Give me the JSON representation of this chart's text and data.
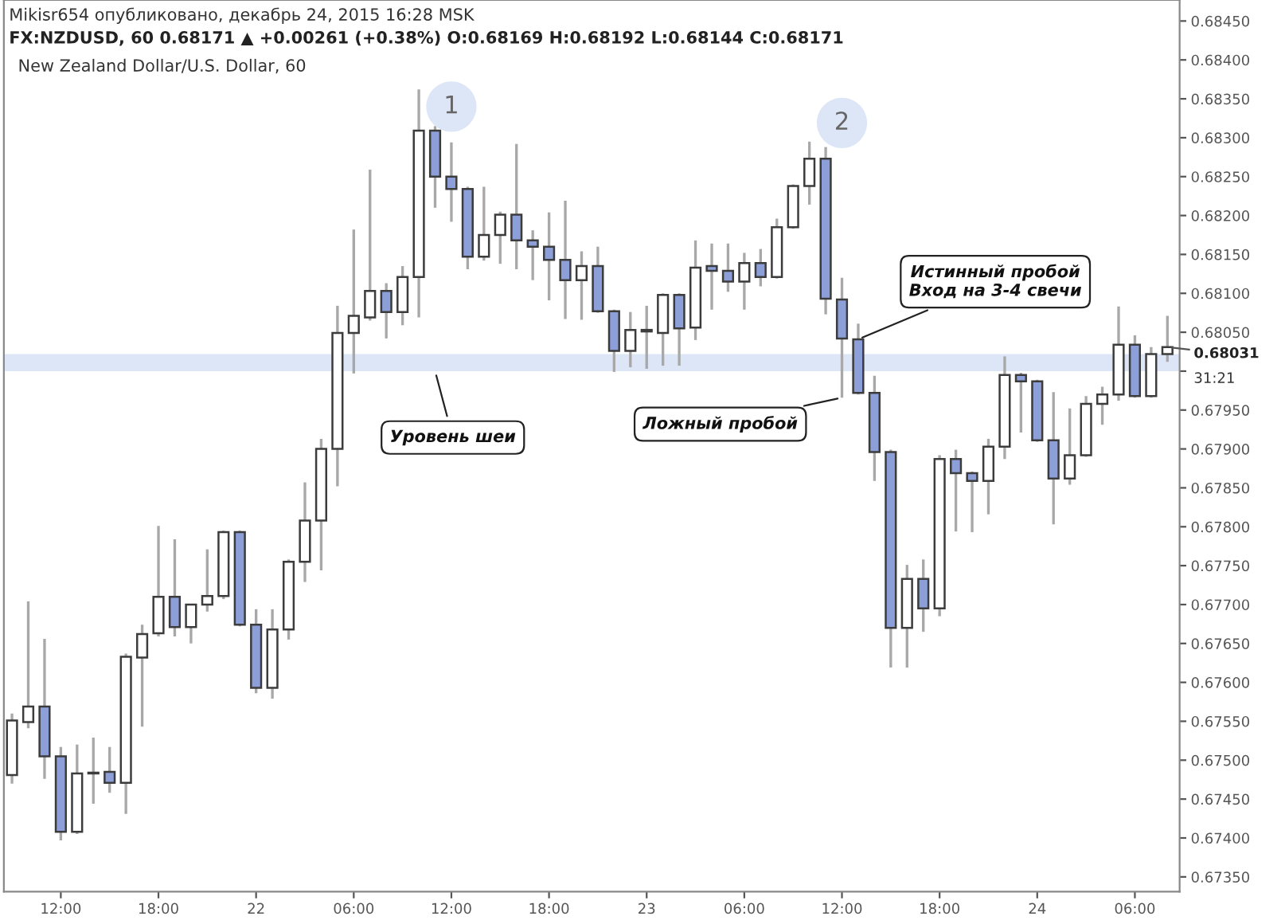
{
  "chart_data": {
    "type": "candlestick",
    "title": "New Zealand Dollar/U.S. Dollar, 60",
    "subtitle": "FX:NZDUSD, 60 0.68171 ▲ +0.00261 (+0.38%) O:0.68169 H:0.68192 L:0.68144 C:0.68171",
    "x": [
      "2015-12-21T09:00",
      "2015-12-21T10:00",
      "2015-12-21T11:00",
      "2015-12-21T12:00",
      "2015-12-21T13:00",
      "2015-12-21T14:00",
      "2015-12-21T15:00",
      "2015-12-21T16:00",
      "2015-12-21T17:00",
      "2015-12-21T18:00",
      "2015-12-21T19:00",
      "2015-12-21T20:00",
      "2015-12-21T21:00",
      "2015-12-21T22:00",
      "2015-12-21T23:00",
      "2015-12-22T00:00",
      "2015-12-22T01:00",
      "2015-12-22T02:00",
      "2015-12-22T03:00",
      "2015-12-22T04:00",
      "2015-12-22T05:00",
      "2015-12-22T06:00",
      "2015-12-22T07:00",
      "2015-12-22T08:00",
      "2015-12-22T09:00",
      "2015-12-22T10:00",
      "2015-12-22T11:00",
      "2015-12-22T12:00",
      "2015-12-22T13:00",
      "2015-12-22T14:00",
      "2015-12-22T15:00",
      "2015-12-22T16:00",
      "2015-12-22T17:00",
      "2015-12-22T18:00",
      "2015-12-22T19:00",
      "2015-12-22T20:00",
      "2015-12-22T21:00",
      "2015-12-22T22:00",
      "2015-12-22T23:00",
      "2015-12-23T00:00",
      "2015-12-23T01:00",
      "2015-12-23T02:00",
      "2015-12-23T03:00",
      "2015-12-23T04:00",
      "2015-12-23T05:00",
      "2015-12-23T06:00",
      "2015-12-23T07:00",
      "2015-12-23T08:00",
      "2015-12-23T09:00",
      "2015-12-23T10:00",
      "2015-12-23T11:00",
      "2015-12-23T12:00",
      "2015-12-23T13:00",
      "2015-12-23T14:00",
      "2015-12-23T15:00",
      "2015-12-23T16:00",
      "2015-12-23T17:00",
      "2015-12-23T18:00",
      "2015-12-23T19:00",
      "2015-12-23T20:00",
      "2015-12-23T21:00",
      "2015-12-23T22:00",
      "2015-12-23T23:00",
      "2015-12-24T00:00",
      "2015-12-24T01:00",
      "2015-12-24T02:00",
      "2015-12-24T03:00",
      "2015-12-24T04:00",
      "2015-12-24T05:00",
      "2015-12-24T06:00",
      "2015-12-24T07:00",
      "2015-12-24T08:00"
    ],
    "ohlc": [
      [
        0.67481,
        0.6756,
        0.6747,
        0.67551
      ],
      [
        0.67549,
        0.67704,
        0.67541,
        0.67569
      ],
      [
        0.67569,
        0.67656,
        0.67476,
        0.67505
      ],
      [
        0.67505,
        0.67517,
        0.67397,
        0.67408
      ],
      [
        0.67408,
        0.6752,
        0.67405,
        0.67483
      ],
      [
        0.67484,
        0.67529,
        0.67444,
        0.67483
      ],
      [
        0.67485,
        0.67517,
        0.67458,
        0.67471
      ],
      [
        0.67471,
        0.67637,
        0.67431,
        0.67633
      ],
      [
        0.67632,
        0.67674,
        0.67543,
        0.67662
      ],
      [
        0.67663,
        0.67801,
        0.67659,
        0.6771
      ],
      [
        0.6771,
        0.67784,
        0.67659,
        0.67671
      ],
      [
        0.67671,
        0.677,
        0.6765,
        0.677
      ],
      [
        0.677,
        0.67771,
        0.67691,
        0.67711
      ],
      [
        0.67711,
        0.67795,
        0.67707,
        0.67793
      ],
      [
        0.67793,
        0.67795,
        0.67672,
        0.67674
      ],
      [
        0.67674,
        0.67694,
        0.67586,
        0.67593
      ],
      [
        0.67593,
        0.67694,
        0.67579,
        0.67668
      ],
      [
        0.67668,
        0.67758,
        0.67655,
        0.67755
      ],
      [
        0.67755,
        0.67857,
        0.67729,
        0.67808
      ],
      [
        0.67808,
        0.67913,
        0.67744,
        0.679
      ],
      [
        0.679,
        0.68084,
        0.67852,
        0.68049
      ],
      [
        0.68049,
        0.68182,
        0.67997,
        0.68071
      ],
      [
        0.68069,
        0.68259,
        0.68065,
        0.68103
      ],
      [
        0.68103,
        0.68113,
        0.68042,
        0.68076
      ],
      [
        0.68076,
        0.68135,
        0.68059,
        0.68121
      ],
      [
        0.68121,
        0.68362,
        0.68069,
        0.68309
      ],
      [
        0.68309,
        0.68315,
        0.6821,
        0.6825
      ],
      [
        0.6825,
        0.68294,
        0.68192,
        0.68234
      ],
      [
        0.68234,
        0.68237,
        0.68131,
        0.68147
      ],
      [
        0.68147,
        0.68237,
        0.68142,
        0.68175
      ],
      [
        0.68175,
        0.68205,
        0.68138,
        0.68201
      ],
      [
        0.68201,
        0.68292,
        0.68131,
        0.68168
      ],
      [
        0.68168,
        0.68181,
        0.68117,
        0.6816
      ],
      [
        0.6816,
        0.68204,
        0.68091,
        0.68143
      ],
      [
        0.68143,
        0.68219,
        0.68067,
        0.68117
      ],
      [
        0.68117,
        0.68154,
        0.68066,
        0.68135
      ],
      [
        0.68135,
        0.6816,
        0.68075,
        0.68077
      ],
      [
        0.68077,
        0.68079,
        0.67999,
        0.68026
      ],
      [
        0.68026,
        0.68076,
        0.68005,
        0.68053
      ],
      [
        0.68053,
        0.68084,
        0.68003,
        0.68051
      ],
      [
        0.68049,
        0.681,
        0.68007,
        0.68098
      ],
      [
        0.68098,
        0.681,
        0.68007,
        0.68055
      ],
      [
        0.68056,
        0.68168,
        0.6804,
        0.68133
      ],
      [
        0.68135,
        0.68164,
        0.68079,
        0.68129
      ],
      [
        0.68129,
        0.68164,
        0.68102,
        0.68115
      ],
      [
        0.68115,
        0.68152,
        0.68079,
        0.68139
      ],
      [
        0.68139,
        0.68157,
        0.68109,
        0.68121
      ],
      [
        0.68121,
        0.68196,
        0.68119,
        0.68185
      ],
      [
        0.68185,
        0.6824,
        0.68183,
        0.68238
      ],
      [
        0.68238,
        0.68295,
        0.68214,
        0.68273
      ],
      [
        0.68273,
        0.68288,
        0.68073,
        0.68093
      ],
      [
        0.68092,
        0.6812,
        0.67966,
        0.68042
      ],
      [
        0.68041,
        0.68061,
        0.6797,
        0.67972
      ],
      [
        0.67972,
        0.67994,
        0.67859,
        0.67896
      ],
      [
        0.67896,
        0.67899,
        0.67619,
        0.6767
      ],
      [
        0.6767,
        0.67751,
        0.67619,
        0.67733
      ],
      [
        0.67733,
        0.67758,
        0.67665,
        0.67695
      ],
      [
        0.67695,
        0.67892,
        0.67685,
        0.67887
      ],
      [
        0.67887,
        0.67899,
        0.67794,
        0.67869
      ],
      [
        0.67869,
        0.67871,
        0.67793,
        0.67859
      ],
      [
        0.67859,
        0.67913,
        0.67816,
        0.67903
      ],
      [
        0.67903,
        0.68019,
        0.67887,
        0.67995
      ],
      [
        0.67995,
        0.67998,
        0.67921,
        0.67987
      ],
      [
        0.67987,
        0.67989,
        0.67909,
        0.67911
      ],
      [
        0.67911,
        0.67973,
        0.67803,
        0.67862
      ],
      [
        0.67862,
        0.67952,
        0.67854,
        0.67892
      ],
      [
        0.67892,
        0.67968,
        0.6789,
        0.67958
      ],
      [
        0.67958,
        0.6798,
        0.67931,
        0.6797
      ],
      [
        0.6797,
        0.68083,
        0.67962,
        0.68034
      ],
      [
        0.68034,
        0.68046,
        0.67966,
        0.67968
      ],
      [
        0.67968,
        0.68031,
        0.67966,
        0.68022
      ],
      [
        0.68022,
        0.68071,
        0.68012,
        0.68031
      ]
    ],
    "colors": [
      "#ffffff",
      "#ffffff",
      "#8c9fd9",
      "#8c9fd9",
      "#ffffff",
      "#8c9fd9",
      "#8c9fd9",
      "#ffffff",
      "#ffffff",
      "#ffffff",
      "#8c9fd9",
      "#ffffff",
      "#ffffff",
      "#ffffff",
      "#8c9fd9",
      "#8c9fd9",
      "#ffffff",
      "#ffffff",
      "#ffffff",
      "#ffffff",
      "#ffffff",
      "#ffffff",
      "#ffffff",
      "#8c9fd9",
      "#ffffff",
      "#ffffff",
      "#8c9fd9",
      "#8c9fd9",
      "#8c9fd9",
      "#ffffff",
      "#ffffff",
      "#8c9fd9",
      "#8c9fd9",
      "#8c9fd9",
      "#8c9fd9",
      "#ffffff",
      "#8c9fd9",
      "#8c9fd9",
      "#ffffff",
      "#8c9fd9",
      "#ffffff",
      "#8c9fd9",
      "#ffffff",
      "#8c9fd9",
      "#8c9fd9",
      "#ffffff",
      "#8c9fd9",
      "#ffffff",
      "#ffffff",
      "#ffffff",
      "#8c9fd9",
      "#8c9fd9",
      "#8c9fd9",
      "#8c9fd9",
      "#8c9fd9",
      "#ffffff",
      "#8c9fd9",
      "#ffffff",
      "#8c9fd9",
      "#8c9fd9",
      "#ffffff",
      "#ffffff",
      "#8c9fd9",
      "#8c9fd9",
      "#8c9fd9",
      "#ffffff",
      "#ffffff",
      "#ffffff",
      "#ffffff",
      "#8c9fd9",
      "#ffffff",
      "#ffffff"
    ],
    "xlim": [
      "2015-12-21T08:30",
      "2015-12-24T08:45"
    ],
    "xticks": [
      {
        "value": "2015-12-21T12:00",
        "label": "12:00"
      },
      {
        "value": "2015-12-21T18:00",
        "label": "18:00"
      },
      {
        "value": "2015-12-22T00:00",
        "label": "22"
      },
      {
        "value": "2015-12-22T06:00",
        "label": "06:00"
      },
      {
        "value": "2015-12-22T12:00",
        "label": "12:00"
      },
      {
        "value": "2015-12-22T18:00",
        "label": "18:00"
      },
      {
        "value": "2015-12-23T00:00",
        "label": "23"
      },
      {
        "value": "2015-12-23T06:00",
        "label": "06:00"
      },
      {
        "value": "2015-12-23T12:00",
        "label": "12:00"
      },
      {
        "value": "2015-12-23T18:00",
        "label": "18:00"
      },
      {
        "value": "2015-12-24T00:00",
        "label": "24"
      },
      {
        "value": "2015-12-24T06:00",
        "label": "06:00"
      }
    ],
    "ylim": [
      0.67331,
      0.68477
    ],
    "yticks": [
      {
        "value": 0.6735,
        "label": "0.67350"
      },
      {
        "value": 0.674,
        "label": "0.67400"
      },
      {
        "value": 0.6745,
        "label": "0.67450"
      },
      {
        "value": 0.675,
        "label": "0.67500"
      },
      {
        "value": 0.6755,
        "label": "0.67550"
      },
      {
        "value": 0.676,
        "label": "0.67600"
      },
      {
        "value": 0.6765,
        "label": "0.67650"
      },
      {
        "value": 0.677,
        "label": "0.67700"
      },
      {
        "value": 0.6775,
        "label": "0.67750"
      },
      {
        "value": 0.678,
        "label": "0.67800"
      },
      {
        "value": 0.6785,
        "label": "0.67850"
      },
      {
        "value": 0.679,
        "label": "0.67900"
      },
      {
        "value": 0.6795,
        "label": "0.67950"
      },
      {
        "value": 0.68,
        "label": null
      },
      {
        "value": 0.6805,
        "label": "0.68050"
      },
      {
        "value": 0.681,
        "label": "0.68100"
      },
      {
        "value": 0.6815,
        "label": "0.68150"
      },
      {
        "value": 0.682,
        "label": "0.68200"
      },
      {
        "value": 0.6825,
        "label": "0.68250"
      },
      {
        "value": 0.683,
        "label": "0.68300"
      },
      {
        "value": 0.6835,
        "label": "0.68350"
      },
      {
        "value": 0.684,
        "label": "0.68400"
      },
      {
        "value": 0.6845,
        "label": "0.68450"
      }
    ],
    "bands": [
      {
        "axis": "y",
        "from": 0.68,
        "to": 0.68022,
        "color": "#dce6f7"
      }
    ],
    "annotations": [
      "Mikisr654 опубликовано, декабрь 24, 2015 16:28 MSK",
      "31:21",
      {
        "text": "1",
        "x": "2015-12-22T12:00",
        "y": 0.6834
      },
      {
        "text": "2",
        "x": "2015-12-23T12:00",
        "y": 0.68319
      },
      {
        "text": "Уровень шеи",
        "x": "2015-12-22T11:00",
        "y": 0.68
      },
      {
        "text": "Ложный пробой",
        "x": "2015-12-23T12:00",
        "y": 0.67966
      },
      {
        "text": "Истинный пробой\nВход на 3-4 свечи",
        "x": "2015-12-23T13:00",
        "y": 0.68041
      },
      {
        "text": "0.68031",
        "x": "2015-12-24T08:00",
        "y": 0.68031
      }
    ]
  }
}
